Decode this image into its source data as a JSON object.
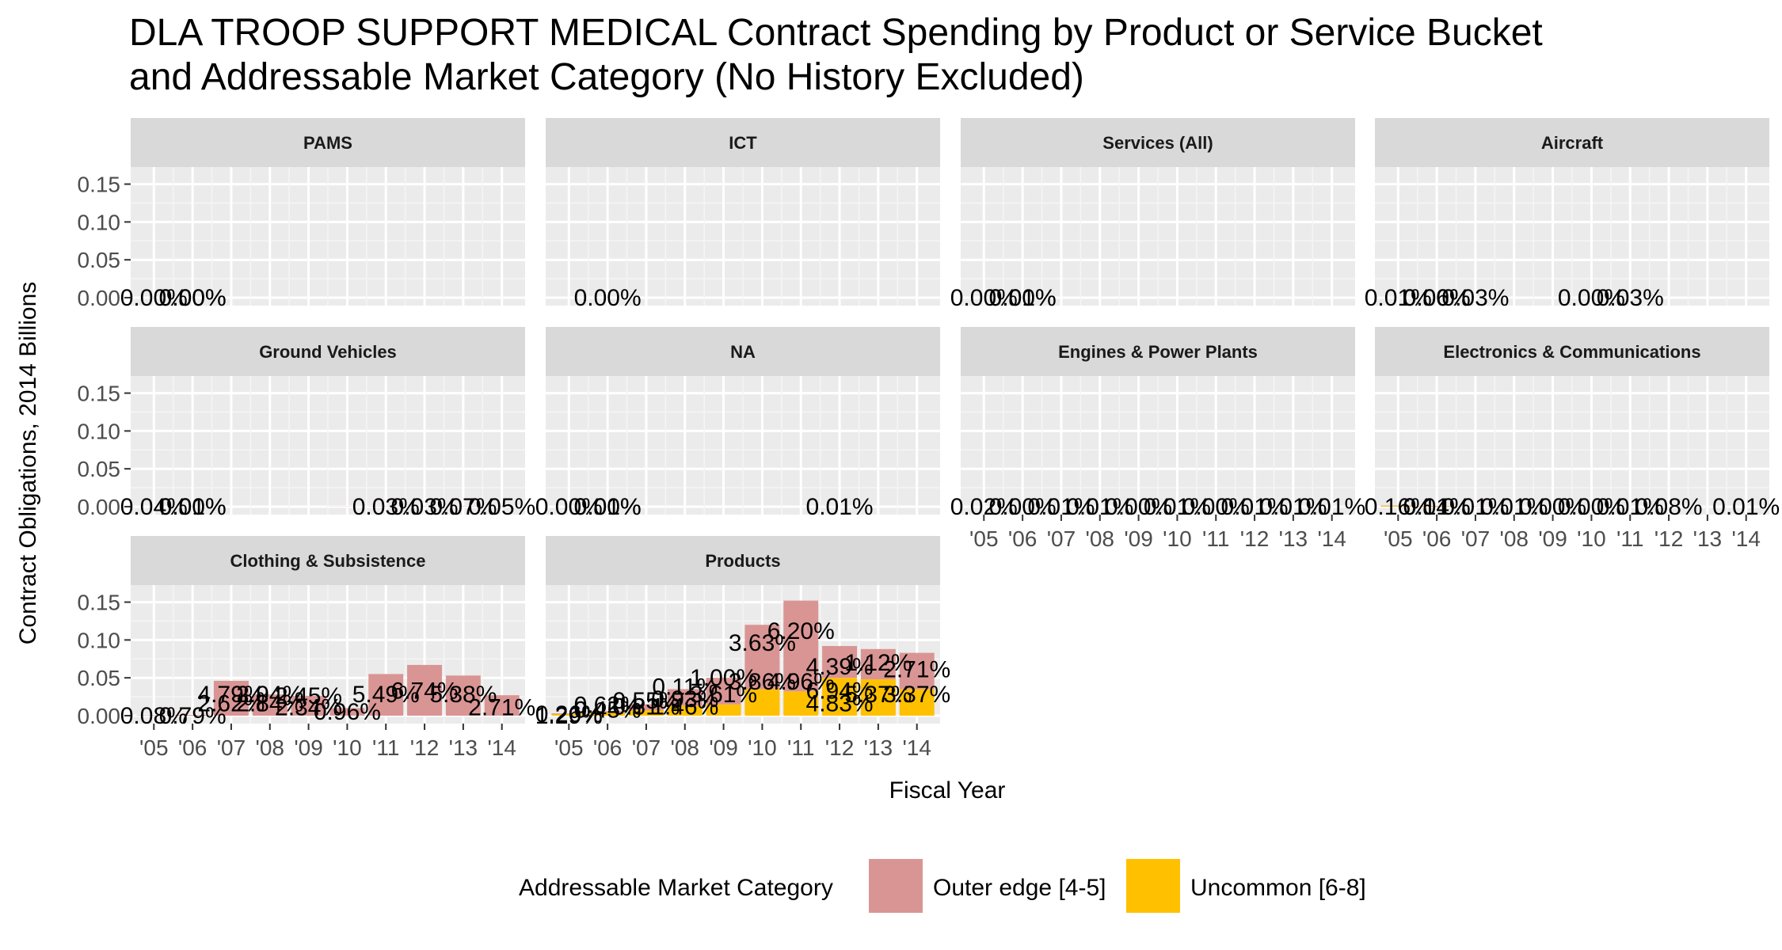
{
  "title_lines": [
    "DLA TROOP SUPPORT MEDICAL Contract Spending by Product or Service Bucket",
    "and Addressable Market Category (No History Excluded)"
  ],
  "chart_data": {
    "type": "bar",
    "stacked": true,
    "faceted": true,
    "title": "DLA TROOP SUPPORT MEDICAL Contract Spending by Product or Service Bucket and Addressable Market Category (No History Excluded)",
    "xlabel": "Fiscal Year",
    "ylabel": "Contract Obligations, 2014 Billions",
    "ylim": [
      0,
      0.16
    ],
    "y_ticks": [
      "0.00",
      "0.05",
      "0.10",
      "0.15"
    ],
    "x_ticks": [
      "'05",
      "'06",
      "'07",
      "'08",
      "'09",
      "'10",
      "'11",
      "'12",
      "'13",
      "'14"
    ],
    "grid": true,
    "legend": {
      "title": "Addressable Market Category",
      "position": "bottom",
      "entries": [
        {
          "name": "Outer edge [4-5]",
          "color": "#d99594"
        },
        {
          "name": "Uncommon [6-8]",
          "color": "#ffc000"
        }
      ]
    },
    "series_names": [
      "Outer edge [4-5]",
      "Uncommon [6-8]"
    ],
    "panels": [
      {
        "name": "PAMS",
        "bars": [
          {
            "x": "'05",
            "outer": 0.0,
            "uncommon": 0.0
          },
          {
            "x": "'06",
            "outer": 0.0,
            "uncommon": 0.0
          }
        ],
        "labels": [
          {
            "text": "0.00%",
            "x": "'05",
            "y": 0.0
          },
          {
            "text": "0.00%",
            "x": "'06",
            "y": 0.0
          },
          {
            "text": "0.00%",
            "x": "'06",
            "y": 0.0
          }
        ]
      },
      {
        "name": "ICT",
        "bars": [
          {
            "x": "'06",
            "outer": 0.0,
            "uncommon": 0.0
          }
        ],
        "labels": [
          {
            "text": "0.00%",
            "x": "'06",
            "y": 0.0
          }
        ]
      },
      {
        "name": "Services (All)",
        "bars": [
          {
            "x": "'05",
            "outer": 0.0,
            "uncommon": 0.0
          },
          {
            "x": "'06",
            "outer": 0.0,
            "uncommon": 0.0
          }
        ],
        "labels": [
          {
            "text": "0.00%",
            "x": "'05",
            "y": 0.0
          },
          {
            "text": "0.00%",
            "x": "'06",
            "y": 0.0
          },
          {
            "text": "0.01%",
            "x": "'06",
            "y": 0.0
          }
        ]
      },
      {
        "name": "Aircraft",
        "bars": [
          {
            "x": "'05",
            "outer": 0.0001,
            "uncommon": 0.0
          },
          {
            "x": "'06",
            "outer": 0.0001,
            "uncommon": 0.0
          },
          {
            "x": "'07",
            "outer": 0.0001,
            "uncommon": 0.0
          },
          {
            "x": "'10",
            "outer": 0.0,
            "uncommon": 0.0
          },
          {
            "x": "'11",
            "outer": 0.0001,
            "uncommon": 0.0
          }
        ],
        "labels": [
          {
            "text": "0.01%",
            "x": "'05",
            "y": 0.0
          },
          {
            "text": "0.06%",
            "x": "'06",
            "y": 0.0
          },
          {
            "text": "0.00%",
            "x": "'06",
            "y": 0.0
          },
          {
            "text": "0.03%",
            "x": "'07",
            "y": 0.0
          },
          {
            "text": "0.00%",
            "x": "'10",
            "y": 0.0
          },
          {
            "text": "0.03%",
            "x": "'11",
            "y": 0.0
          }
        ]
      },
      {
        "name": "Ground Vehicles",
        "bars": [
          {
            "x": "'05",
            "outer": 0.0001,
            "uncommon": 0.0
          },
          {
            "x": "'06",
            "outer": 0.0001,
            "uncommon": 0.0
          },
          {
            "x": "'10",
            "outer": 0.0002,
            "uncommon": 0.0
          },
          {
            "x": "'11",
            "outer": 0.0003,
            "uncommon": 0.0
          },
          {
            "x": "'12",
            "outer": 0.0003,
            "uncommon": 0.0
          },
          {
            "x": "'13",
            "outer": 0.0004,
            "uncommon": 0.0
          },
          {
            "x": "'14",
            "outer": 0.0003,
            "uncommon": 0.0
          }
        ],
        "labels": [
          {
            "text": "0.04%",
            "x": "'05",
            "y": 0.0
          },
          {
            "text": "0.01%",
            "x": "'06",
            "y": 0.0
          },
          {
            "text": "0.00%",
            "x": "'06",
            "y": 0.0
          },
          {
            "text": "0.03%",
            "x": "'11",
            "y": 0.0
          },
          {
            "text": "0.03%",
            "x": "'12",
            "y": 0.0
          },
          {
            "text": "0.07%",
            "x": "'13",
            "y": 0.0
          },
          {
            "text": "0.05%",
            "x": "'14",
            "y": 0.0
          }
        ]
      },
      {
        "name": "NA",
        "bars": [
          {
            "x": "'05",
            "outer": 0.0,
            "uncommon": 0.0
          },
          {
            "x": "'06",
            "outer": 0.0,
            "uncommon": 0.0
          },
          {
            "x": "'12",
            "outer": 0.0001,
            "uncommon": 0.0
          }
        ],
        "labels": [
          {
            "text": "0.00%",
            "x": "'05",
            "y": 0.0
          },
          {
            "text": "0.01%",
            "x": "'06",
            "y": 0.0
          },
          {
            "text": "0.00%",
            "x": "'06",
            "y": 0.0
          },
          {
            "text": "0.01%",
            "x": "'12",
            "y": 0.0
          }
        ]
      },
      {
        "name": "Engines & Power Plants",
        "bars": [
          {
            "x": "'05",
            "outer": 0.0001,
            "uncommon": 0.0
          },
          {
            "x": "'06",
            "outer": 0.0001,
            "uncommon": 0.0
          },
          {
            "x": "'07",
            "outer": 0.0001,
            "uncommon": 0.0
          },
          {
            "x": "'08",
            "outer": 0.0001,
            "uncommon": 0.0
          },
          {
            "x": "'09",
            "outer": 0.0001,
            "uncommon": 0.0
          },
          {
            "x": "'10",
            "outer": 0.0001,
            "uncommon": 0.0
          },
          {
            "x": "'11",
            "outer": 0.0001,
            "uncommon": 0.0
          },
          {
            "x": "'12",
            "outer": 0.0001,
            "uncommon": 0.0
          },
          {
            "x": "'13",
            "outer": 0.0001,
            "uncommon": 0.0
          },
          {
            "x": "'14",
            "outer": 0.0001,
            "uncommon": 0.0
          }
        ],
        "labels": [
          {
            "text": "0.02%",
            "x": "'05",
            "y": 0.0
          },
          {
            "text": "0.00%",
            "x": "'06",
            "y": 0.0
          },
          {
            "text": "0.01%",
            "x": "'07",
            "y": 0.0
          },
          {
            "text": "0.01%",
            "x": "'08",
            "y": 0.0
          },
          {
            "text": "0.00%",
            "x": "'09",
            "y": 0.0
          },
          {
            "text": "0.01%",
            "x": "'10",
            "y": 0.0
          },
          {
            "text": "0.00%",
            "x": "'11",
            "y": 0.0
          },
          {
            "text": "0.01%",
            "x": "'12",
            "y": 0.0
          },
          {
            "text": "0.01%",
            "x": "'13",
            "y": 0.0
          },
          {
            "text": "0.01%",
            "x": "'14",
            "y": 0.0
          }
        ]
      },
      {
        "name": "Electronics & Communications",
        "bars": [
          {
            "x": "'05",
            "outer": 0.0004,
            "uncommon": 0.001
          },
          {
            "x": "'06",
            "outer": 0.0004,
            "uncommon": 0.0006
          },
          {
            "x": "'07",
            "outer": 0.0003,
            "uncommon": 0.0
          },
          {
            "x": "'08",
            "outer": 0.0002,
            "uncommon": 0.0
          },
          {
            "x": "'09",
            "outer": 0.0001,
            "uncommon": 0.0
          },
          {
            "x": "'10",
            "outer": 0.0001,
            "uncommon": 0.0
          },
          {
            "x": "'11",
            "outer": 0.0001,
            "uncommon": 0.0
          },
          {
            "x": "'12",
            "outer": 0.0001,
            "uncommon": 0.0
          },
          {
            "x": "'13",
            "outer": 0.0001,
            "uncommon": 0.0
          },
          {
            "x": "'14",
            "outer": 0.0001,
            "uncommon": 0.0
          }
        ],
        "labels": [
          {
            "text": "0.16%",
            "x": "'05",
            "y": 0.0
          },
          {
            "text": "0.14%",
            "x": "'06",
            "y": 0.0
          },
          {
            "text": "0.01%",
            "x": "'06",
            "y": 0.0
          },
          {
            "text": "0.01%",
            "x": "'07",
            "y": 0.0
          },
          {
            "text": "0.01%",
            "x": "'08",
            "y": 0.0
          },
          {
            "text": "0.00%",
            "x": "'09",
            "y": 0.0
          },
          {
            "text": "0.00%",
            "x": "'10",
            "y": 0.0
          },
          {
            "text": "0.01%",
            "x": "'11",
            "y": 0.0
          },
          {
            "text": "0.08%",
            "x": "'12",
            "y": 0.0
          },
          {
            "text": "0.01%",
            "x": "'14",
            "y": 0.0
          }
        ]
      },
      {
        "name": "Clothing & Subsistence",
        "bars": [
          {
            "x": "'05",
            "outer": 0.0005,
            "uncommon": 0.0
          },
          {
            "x": "'06",
            "outer": 0.001,
            "uncommon": 0.0
          },
          {
            "x": "'07",
            "outer": 0.046,
            "uncommon": 0.0
          },
          {
            "x": "'08",
            "outer": 0.028,
            "uncommon": 0.0
          },
          {
            "x": "'09",
            "outer": 0.026,
            "uncommon": 0.0
          },
          {
            "x": "'10",
            "outer": 0.01,
            "uncommon": 0.0
          },
          {
            "x": "'11",
            "outer": 0.055,
            "uncommon": 0.0
          },
          {
            "x": "'12",
            "outer": 0.067,
            "uncommon": 0.0
          },
          {
            "x": "'13",
            "outer": 0.053,
            "uncommon": 0.0
          },
          {
            "x": "'14",
            "outer": 0.027,
            "uncommon": 0.0
          }
        ],
        "labels": [
          {
            "text": "0.08%",
            "x": "'05",
            "y": 0.0
          },
          {
            "text": "0.79%",
            "x": "'06",
            "y": 0.0
          },
          {
            "text": "4.79%",
            "x": "'07",
            "y": 0.028
          },
          {
            "text": "2.62%",
            "x": "'07",
            "y": 0.016
          },
          {
            "text": "2.94%",
            "x": "'08",
            "y": 0.028
          },
          {
            "text": "2.84%",
            "x": "'08",
            "y": 0.016
          },
          {
            "text": "2.45%",
            "x": "'09",
            "y": 0.026
          },
          {
            "text": "2.34%",
            "x": "'09",
            "y": 0.011
          },
          {
            "text": "0.96%",
            "x": "'10",
            "y": 0.005
          },
          {
            "text": "5.49%",
            "x": "'11",
            "y": 0.028
          },
          {
            "text": "6.74%",
            "x": "'12",
            "y": 0.033
          },
          {
            "text": "5.38%",
            "x": "'13",
            "y": 0.028
          },
          {
            "text": "2.71%",
            "x": "'14",
            "y": 0.011
          }
        ]
      },
      {
        "name": "Products",
        "bars": [
          {
            "x": "'05",
            "outer": 0.001,
            "uncommon": 0.002
          },
          {
            "x": "'06",
            "outer": 0.002,
            "uncommon": 0.004
          },
          {
            "x": "'07",
            "outer": 0.008,
            "uncommon": 0.007
          },
          {
            "x": "'08",
            "outer": 0.022,
            "uncommon": 0.013
          },
          {
            "x": "'09",
            "outer": 0.035,
            "uncommon": 0.015
          },
          {
            "x": "'10",
            "outer": 0.085,
            "uncommon": 0.035
          },
          {
            "x": "'11",
            "outer": 0.12,
            "uncommon": 0.032
          },
          {
            "x": "'12",
            "outer": 0.042,
            "uncommon": 0.05
          },
          {
            "x": "'13",
            "outer": 0.04,
            "uncommon": 0.048
          },
          {
            "x": "'14",
            "outer": 0.048,
            "uncommon": 0.035
          }
        ],
        "labels": [
          {
            "text": "0.26%",
            "x": "'05",
            "y": 0.002
          },
          {
            "text": "1.29%",
            "x": "'05",
            "y": 0.0
          },
          {
            "text": "0.62%",
            "x": "'06",
            "y": 0.014
          },
          {
            "text": "0.45%",
            "x": "'06",
            "y": 0.008
          },
          {
            "text": "0.55%",
            "x": "'07",
            "y": 0.02
          },
          {
            "text": "0.81%",
            "x": "'07",
            "y": 0.012
          },
          {
            "text": "0.11%",
            "x": "'08",
            "y": 0.038
          },
          {
            "text": "0.93%",
            "x": "'08",
            "y": 0.022
          },
          {
            "text": "1.46%",
            "x": "'08",
            "y": 0.012
          },
          {
            "text": "1.00%",
            "x": "'09",
            "y": 0.05
          },
          {
            "text": "3.61%",
            "x": "'09",
            "y": 0.028
          },
          {
            "text": "3.63%",
            "x": "'10",
            "y": 0.096
          },
          {
            "text": "3.86%",
            "x": "'10",
            "y": 0.045
          },
          {
            "text": "6.20%",
            "x": "'11",
            "y": 0.112
          },
          {
            "text": "4.96%",
            "x": "'11",
            "y": 0.045
          },
          {
            "text": "4.39%",
            "x": "'12",
            "y": 0.065
          },
          {
            "text": "6.94%",
            "x": "'12",
            "y": 0.033
          },
          {
            "text": "4.83%",
            "x": "'12",
            "y": 0.016
          },
          {
            "text": "1.12%",
            "x": "'13",
            "y": 0.07
          },
          {
            "text": "5.37%",
            "x": "'13",
            "y": 0.028
          },
          {
            "text": "2.71%",
            "x": "'14",
            "y": 0.061
          },
          {
            "text": "3.37%",
            "x": "'14",
            "y": 0.028
          }
        ]
      }
    ]
  }
}
